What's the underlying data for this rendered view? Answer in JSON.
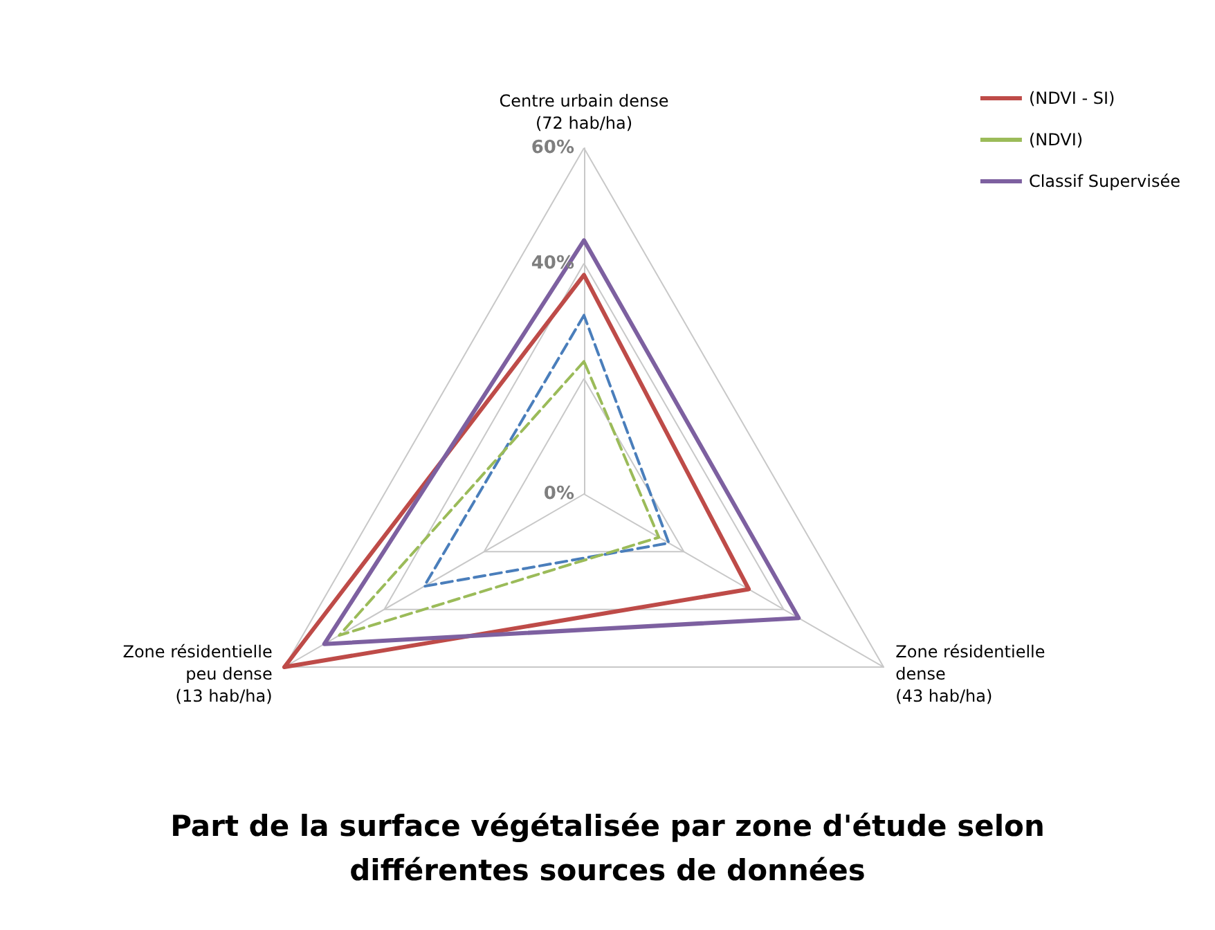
{
  "chart_data": {
    "type": "radar",
    "title": "Part de la surface végétalisée par zone d'étude selon\ndifférentes sources de données",
    "categories": [
      "Centre urbain dense\n(72 hab/ha)",
      "Zone résidentielle\ndense\n(43 hab/ha)",
      "Zone résidentielle\npeu dense\n(13 hab/ha)"
    ],
    "series": [
      {
        "color": "#4a7ebb",
        "line_style": "dashed",
        "values": [
          31,
          17,
          32
        ]
      },
      {
        "name": "(NDVI - SI)",
        "color": "#be4b48",
        "line_style": "solid",
        "values": [
          38,
          33,
          60
        ]
      },
      {
        "name": "(NDVI)",
        "color": "#9bbb59",
        "line_style": "dashed",
        "values": [
          23,
          15,
          49
        ]
      },
      {
        "name": "Classif Supervisée",
        "color": "#7d60a0",
        "line_style": "solid",
        "values": [
          44,
          43,
          52
        ]
      }
    ],
    "ylim": [
      0,
      60
    ],
    "yticks": [
      {
        "value": 0,
        "label": "0%"
      },
      {
        "value": 40,
        "label": "40%"
      },
      {
        "value": 60,
        "label": "60%"
      }
    ],
    "grid": true,
    "legend": "top right",
    "marker": "none"
  }
}
